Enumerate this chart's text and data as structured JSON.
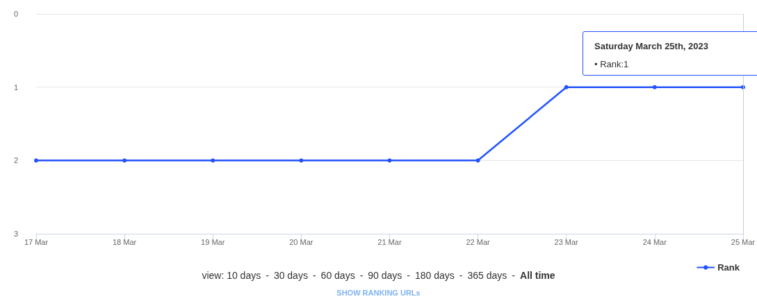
{
  "chart_data": {
    "type": "line",
    "categories": [
      "17 Mar",
      "18 Mar",
      "19 Mar",
      "20 Mar",
      "21 Mar",
      "22 Mar",
      "23 Mar",
      "24 Mar",
      "25 Mar"
    ],
    "series": [
      {
        "name": "Rank",
        "color": "#2152ff",
        "values": [
          2,
          2,
          2,
          2,
          2,
          2,
          1,
          1,
          1
        ]
      }
    ],
    "ylim": [
      3,
      0
    ],
    "yticks": [
      0,
      1,
      2,
      3
    ],
    "grid": "y",
    "legend": "bottom right",
    "marker": "circle",
    "line_style": "solid",
    "ref_lines": [
      {
        "axis": "x",
        "value": "25 Mar",
        "color": "#cccccc"
      }
    ],
    "annotations": [
      "Saturday March 25th, 2023",
      "• Rank:1",
      "view: 10 days - 30 days - 60 days - 90 days - 180 days - 365 days - All time",
      "SHOW RANKING URLs"
    ]
  }
}
